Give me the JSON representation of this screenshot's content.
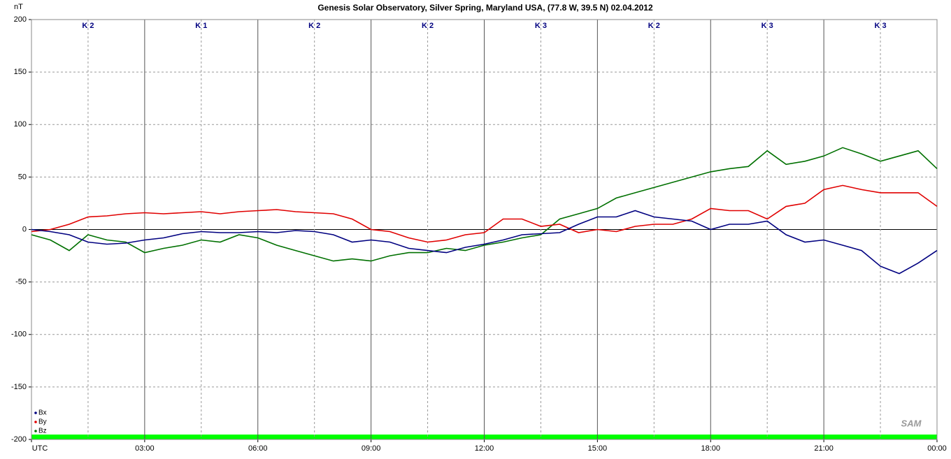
{
  "chart_data": {
    "type": "line",
    "title": "Genesis Solar Observatory, Silver Spring, Maryland USA, (77.8 W, 39.5 N)  02.04.2012",
    "y_label": "nT",
    "logo": "SAM",
    "annotations": [
      "K 2",
      "K 1",
      "K 2",
      "K 2",
      "K 3",
      "K 2",
      "K 3",
      "K 3"
    ],
    "x": [
      0,
      0.5,
      1,
      1.5,
      2,
      2.5,
      3,
      3.5,
      4,
      4.5,
      5,
      5.5,
      6,
      6.5,
      7,
      7.5,
      8,
      8.5,
      9,
      9.5,
      10,
      10.5,
      11,
      11.5,
      12,
      12.5,
      13,
      13.5,
      14,
      14.5,
      15,
      15.5,
      16,
      16.5,
      17,
      17.5,
      18,
      18.5,
      19,
      19.5,
      20,
      20.5,
      21,
      21.5,
      22,
      22.5,
      23,
      23.5,
      24
    ],
    "xlim": [
      0,
      24
    ],
    "xticks": [
      {
        "value": 0,
        "label": "UTC"
      },
      {
        "value": 3,
        "label": "03:00"
      },
      {
        "value": 6,
        "label": "06:00"
      },
      {
        "value": 9,
        "label": "09:00"
      },
      {
        "value": 12,
        "label": "12:00"
      },
      {
        "value": 15,
        "label": "15:00"
      },
      {
        "value": 18,
        "label": "18:00"
      },
      {
        "value": 21,
        "label": "21:00"
      },
      {
        "value": 24,
        "label": "00:00"
      }
    ],
    "ylim": [
      -200,
      200
    ],
    "yticks": [
      -200,
      -150,
      -100,
      -50,
      0,
      50,
      100,
      150,
      200
    ],
    "grid": true,
    "legend": "lower left",
    "series": [
      {
        "name": "Bx",
        "color": "#000080",
        "values": [
          0,
          -2,
          -5,
          -12,
          -14,
          -13,
          -10,
          -8,
          -4,
          -2,
          -3,
          -3,
          -2,
          -3,
          -1,
          -2,
          -5,
          -12,
          -10,
          -12,
          -18,
          -20,
          -22,
          -17,
          -14,
          -10,
          -5,
          -4,
          -3,
          5,
          12,
          12,
          18,
          12,
          10,
          8,
          0,
          5,
          5,
          8,
          -5,
          -12,
          -10,
          -15,
          -20,
          -35,
          -42,
          -32,
          -20
        ]
      },
      {
        "name": "By",
        "color": "#e00000",
        "values": [
          -2,
          0,
          5,
          12,
          13,
          15,
          16,
          15,
          16,
          17,
          15,
          17,
          18,
          19,
          17,
          16,
          15,
          10,
          0,
          -2,
          -8,
          -12,
          -10,
          -5,
          -3,
          10,
          10,
          3,
          5,
          -3,
          0,
          -2,
          3,
          5,
          5,
          10,
          20,
          18,
          18,
          10,
          22,
          25,
          38,
          42,
          38,
          35,
          35,
          35,
          22
        ]
      },
      {
        "name": "Bz",
        "color": "#007000",
        "values": [
          -5,
          -10,
          -20,
          -5,
          -10,
          -12,
          -22,
          -18,
          -15,
          -10,
          -12,
          -5,
          -8,
          -15,
          -20,
          -25,
          -30,
          -28,
          -30,
          -25,
          -22,
          -22,
          -18,
          -20,
          -15,
          -12,
          -8,
          -5,
          10,
          15,
          20,
          30,
          35,
          40,
          45,
          50,
          55,
          58,
          60,
          75,
          62,
          65,
          70,
          78,
          72,
          65,
          70,
          75,
          58
        ]
      }
    ]
  }
}
